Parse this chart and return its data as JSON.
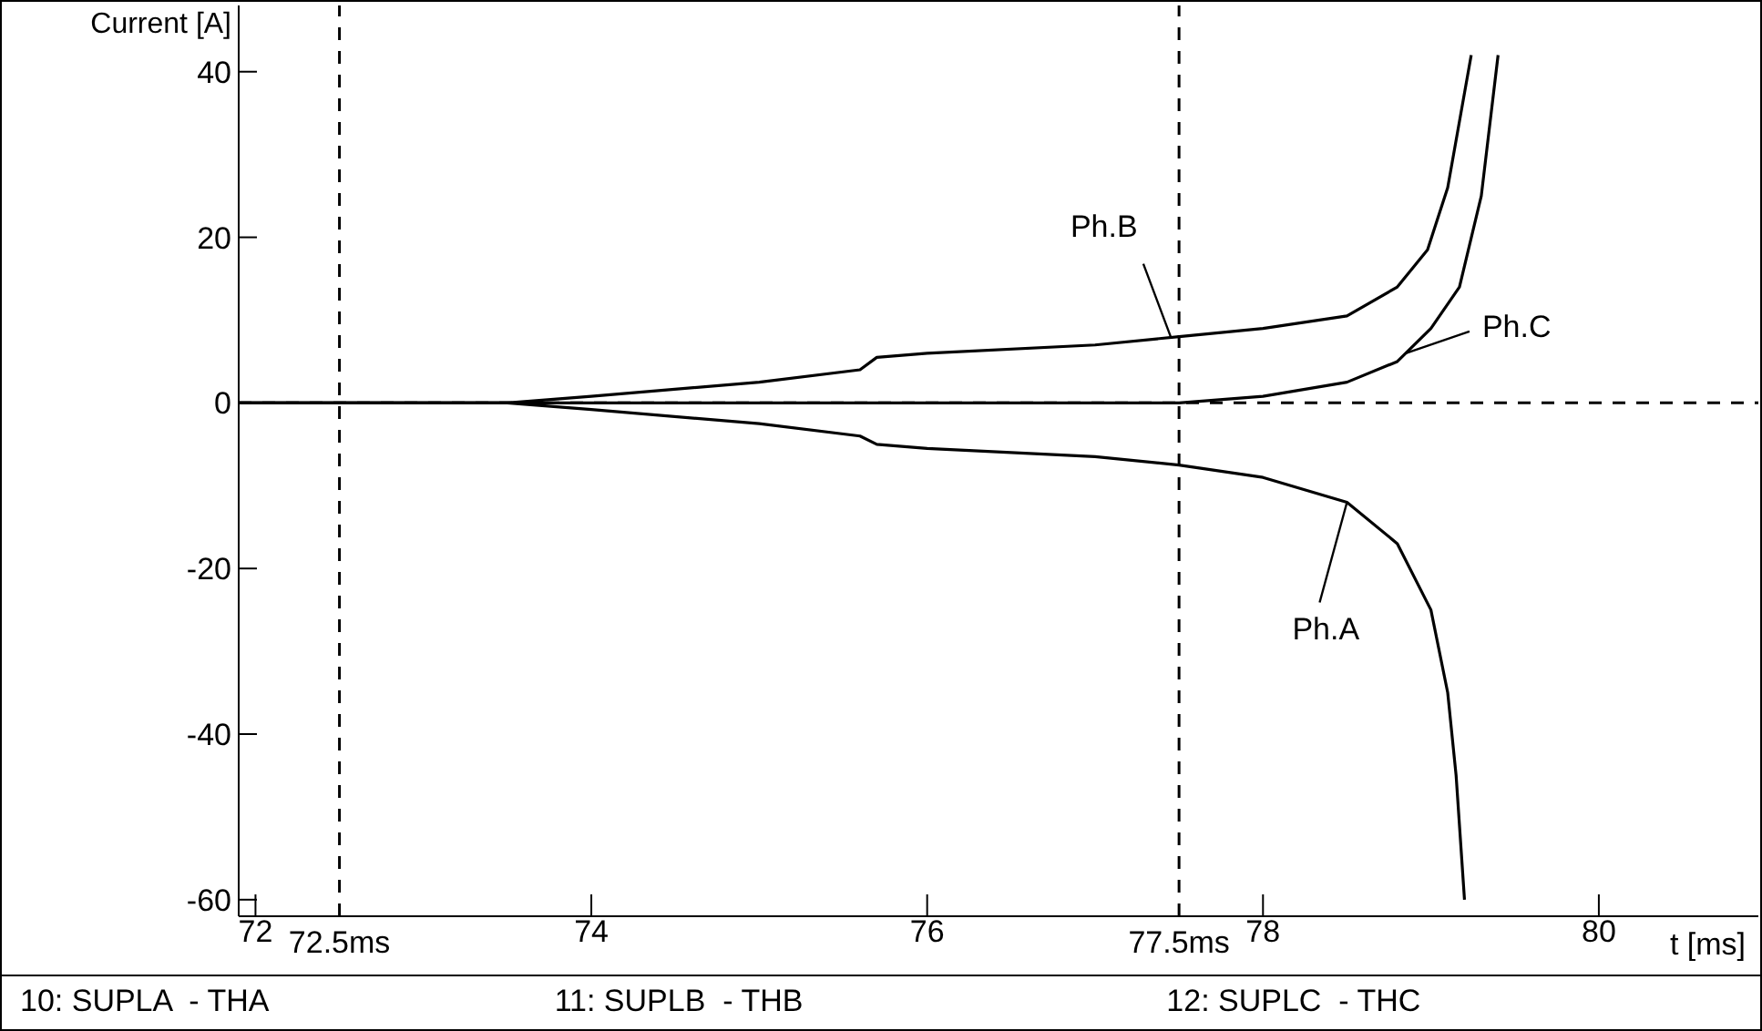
{
  "chart_data": {
    "type": "line",
    "ylabel": "Current [A]",
    "xlabel": "t [ms]",
    "xlim": [
      71.9,
      80.95
    ],
    "xticks": [
      72,
      74,
      76,
      78,
      80
    ],
    "ylim": [
      -62,
      48
    ],
    "yticks": [
      -60,
      -40,
      -20,
      0,
      20,
      40
    ],
    "marker": "none",
    "line_style": "solid",
    "series": [
      {
        "color": "#000000",
        "x": [
          71.9,
          73.5,
          74,
          75,
          75.6,
          75.7,
          76,
          77,
          77.5,
          78,
          78.5,
          78.8,
          79.0,
          79.1,
          79.15,
          79.2
        ],
        "values": [
          0,
          0,
          -0.8,
          -2.5,
          -4,
          -5,
          -5.5,
          -6.5,
          -7.5,
          -9,
          -12,
          -17,
          -25,
          -35,
          -45,
          -60
        ]
      },
      {
        "color": "#000000",
        "x": [
          71.9,
          73.5,
          74,
          75,
          75.6,
          75.7,
          76,
          77,
          77.5,
          78,
          78.5,
          78.8,
          78.98,
          79.1,
          79.24
        ],
        "values": [
          0,
          0,
          0.8,
          2.5,
          4,
          5.5,
          6,
          7,
          8,
          9,
          10.5,
          14,
          18.5,
          26,
          42
        ]
      },
      {
        "color": "#000000",
        "x": [
          71.9,
          77.5,
          78,
          78.5,
          78.8,
          79.0,
          79.17,
          79.3,
          79.4
        ],
        "values": [
          0,
          0,
          0.8,
          2.5,
          5,
          9,
          14,
          25,
          42
        ]
      }
    ],
    "ref_lines": [
      {
        "axis": "x",
        "value": 72.5,
        "label": "72.5ms",
        "line_style": "dashed",
        "color": "#000000"
      },
      {
        "axis": "x",
        "value": 77.5,
        "label": "77.5ms",
        "line_style": "dashed",
        "color": "#000000"
      },
      {
        "axis": "y",
        "value": 0,
        "label": null,
        "line_style": "dashed",
        "color": "#000000"
      }
    ],
    "annotations": [
      {
        "text": "Ph.A",
        "x": 78.5,
        "y": -12
      },
      {
        "text": "Ph.B",
        "x": 77.45,
        "y": 8
      },
      {
        "text": "Ph.C",
        "x": 78.85,
        "y": 6
      },
      "10: SUPLA  - THA",
      "11: SUPLB  - THB",
      "12: SUPLC  - THC"
    ]
  }
}
